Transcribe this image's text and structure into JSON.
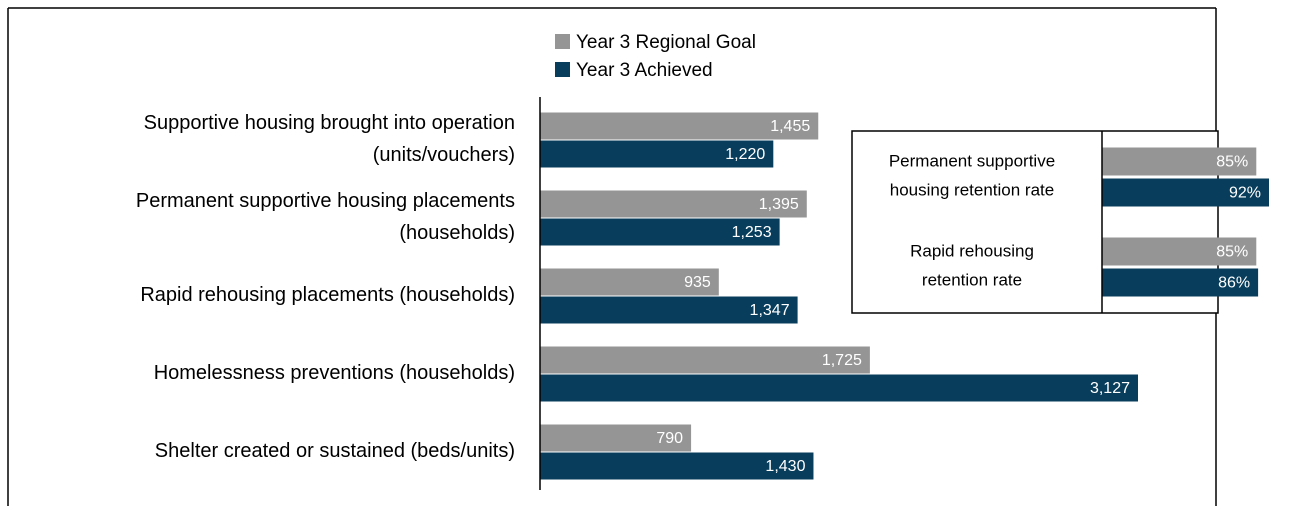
{
  "chart_data": [
    {
      "type": "bar",
      "orientation": "horizontal",
      "categories": [
        "Supportive housing brought into operation\n(units/vouchers)",
        "Permanent supportive housing placements\n(households)",
        "Rapid rehousing placements (households)",
        "Homelessness preventions (households)",
        "Shelter created or sustained (beds/units)"
      ],
      "series": [
        {
          "name": "Year 3 Regional Goal",
          "color": "#959595",
          "values": [
            1455,
            1395,
            935,
            1725,
            790
          ],
          "value_labels": [
            "1,455",
            "1,395",
            "935",
            "1,725",
            "790"
          ]
        },
        {
          "name": "Year 3 Achieved",
          "color": "#083d5c",
          "values": [
            1220,
            1253,
            1347,
            3127,
            1430
          ],
          "value_labels": [
            "1,220",
            "1,253",
            "1,347",
            "3,127",
            "1,430"
          ]
        }
      ]
    },
    {
      "type": "bar",
      "orientation": "horizontal",
      "categories": [
        "Permanent supportive\nhousing retention rate",
        "Rapid rehousing\nretention rate"
      ],
      "series": [
        {
          "name": "Year 3 Regional Goal",
          "color": "#959595",
          "values": [
            85,
            85
          ],
          "value_labels": [
            "85%",
            "85%"
          ]
        },
        {
          "name": "Year 3 Achieved",
          "color": "#083d5c",
          "values": [
            92,
            86
          ],
          "value_labels": [
            "92%",
            "86%"
          ]
        }
      ]
    }
  ]
}
